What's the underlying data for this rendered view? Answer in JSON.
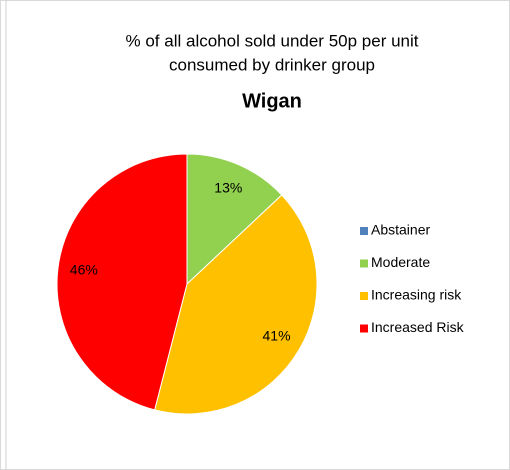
{
  "chart_data": {
    "type": "pie",
    "title": [
      "% of all alcohol sold under 50p per unit",
      "consumed  by drinker group"
    ],
    "subtitle": "Wigan",
    "categories": [
      "Abstainer",
      "Moderate",
      "Increasing risk",
      "Increased Risk"
    ],
    "values": [
      0,
      13,
      41,
      46
    ],
    "value_labels": [
      null,
      "13%",
      "41%",
      "46%"
    ],
    "colors": [
      "#4f81bd",
      "#92d050",
      "#ffc000",
      "#ff0000"
    ],
    "legend": "right"
  }
}
